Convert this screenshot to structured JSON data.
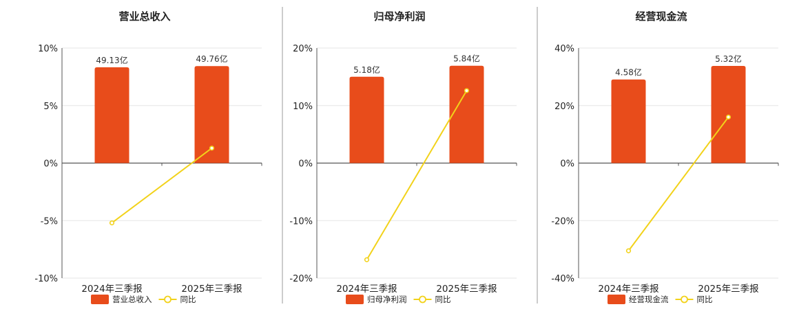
{
  "colors": {
    "bar": "#E84C1B",
    "line": "#F2D21A",
    "grid": "#e6e6e6",
    "axis": "#555555",
    "divider": "#999999"
  },
  "chart_data": [
    {
      "type": "bar",
      "title": "营业总收入",
      "categories": [
        "2024年三季报",
        "2025年三季报"
      ],
      "series": [
        {
          "name": "营业总收入",
          "type": "bar",
          "values": [
            49.13,
            49.76
          ],
          "labels": [
            "49.13亿",
            "49.76亿"
          ]
        },
        {
          "name": "同比",
          "type": "line",
          "values": [
            -5.2,
            1.3
          ]
        }
      ],
      "y_ticks": [
        "10%",
        "5%",
        "0%",
        "-5%",
        "-10%"
      ],
      "ylim_percent": [
        -10,
        10
      ],
      "bar_ylim": [
        -59,
        59
      ],
      "legend": "bottom",
      "grid": true
    },
    {
      "type": "bar",
      "title": "归母净利润",
      "categories": [
        "2024年三季报",
        "2025年三季报"
      ],
      "series": [
        {
          "name": "归母净利润",
          "type": "bar",
          "values": [
            5.18,
            5.84
          ],
          "labels": [
            "5.18亿",
            "5.84亿"
          ]
        },
        {
          "name": "同比",
          "type": "line",
          "values": [
            -16.8,
            12.6
          ]
        }
      ],
      "y_ticks": [
        "20%",
        "10%",
        "0%",
        "-10%",
        "-20%"
      ],
      "ylim_percent": [
        -20,
        20
      ],
      "bar_ylim": [
        -6.9,
        6.9
      ],
      "legend": "bottom",
      "grid": true
    },
    {
      "type": "bar",
      "title": "经营现金流",
      "categories": [
        "2024年三季报",
        "2025年三季报"
      ],
      "series": [
        {
          "name": "经营现金流",
          "type": "bar",
          "values": [
            4.58,
            5.32
          ],
          "labels": [
            "4.58亿",
            "5.32亿"
          ]
        },
        {
          "name": "同比",
          "type": "line",
          "values": [
            -30.5,
            16.0
          ]
        }
      ],
      "y_ticks": [
        "40%",
        "20%",
        "0%",
        "-20%",
        "-40%"
      ],
      "ylim_percent": [
        -40,
        40
      ],
      "bar_ylim": [
        -6.3,
        6.3
      ],
      "legend": "bottom",
      "grid": true
    }
  ]
}
